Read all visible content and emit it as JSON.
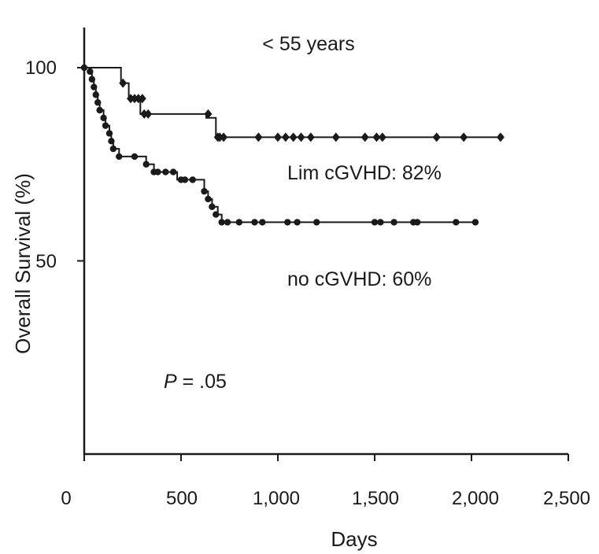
{
  "chart_data": {
    "type": "line",
    "title": "< 55 years",
    "xlabel": "Days",
    "ylabel": "Overall Survival (%)",
    "xlim": [
      0,
      2500
    ],
    "ylim": [
      0,
      105
    ],
    "x_ticks": [
      0,
      500,
      1000,
      1500,
      2000,
      2500
    ],
    "x_tick_labels": [
      "0",
      "500",
      "1,000",
      "1,500",
      "2,000",
      "2,500"
    ],
    "y_ticks": [
      50,
      100
    ],
    "y_tick_labels": [
      "50",
      "100"
    ],
    "grid": false,
    "legend": "none",
    "series": [
      {
        "name": "Lim cGVHD: 82%",
        "marker": "diamond",
        "steps": [
          [
            0,
            100
          ],
          [
            190,
            100
          ],
          [
            190,
            96
          ],
          [
            230,
            96
          ],
          [
            230,
            92
          ],
          [
            290,
            92
          ],
          [
            290,
            88
          ],
          [
            630,
            88
          ],
          [
            630,
            87
          ],
          [
            680,
            87
          ],
          [
            680,
            82
          ],
          [
            2150,
            82
          ]
        ],
        "censored_x": [
          200,
          240,
          260,
          280,
          300,
          310,
          330,
          640,
          690,
          700,
          720,
          900,
          1000,
          1040,
          1080,
          1120,
          1170,
          1300,
          1450,
          1510,
          1540,
          1820,
          1960,
          2150
        ],
        "censored_y": [
          96,
          92,
          92,
          92,
          92,
          88,
          88,
          88,
          82,
          82,
          82,
          82,
          82,
          82,
          82,
          82,
          82,
          82,
          82,
          82,
          82,
          82,
          82,
          82
        ]
      },
      {
        "name": "no cGVHD: 60%",
        "marker": "circle",
        "steps": [
          [
            0,
            100
          ],
          [
            30,
            100
          ],
          [
            30,
            99
          ],
          [
            40,
            99
          ],
          [
            40,
            97
          ],
          [
            50,
            97
          ],
          [
            50,
            95
          ],
          [
            60,
            95
          ],
          [
            60,
            93
          ],
          [
            70,
            93
          ],
          [
            70,
            91
          ],
          [
            80,
            91
          ],
          [
            80,
            89
          ],
          [
            100,
            89
          ],
          [
            100,
            87
          ],
          [
            110,
            87
          ],
          [
            110,
            85
          ],
          [
            130,
            85
          ],
          [
            130,
            83
          ],
          [
            140,
            83
          ],
          [
            140,
            81
          ],
          [
            150,
            81
          ],
          [
            150,
            79
          ],
          [
            180,
            79
          ],
          [
            180,
            77
          ],
          [
            320,
            77
          ],
          [
            320,
            75
          ],
          [
            360,
            75
          ],
          [
            360,
            73
          ],
          [
            480,
            73
          ],
          [
            480,
            71
          ],
          [
            620,
            71
          ],
          [
            620,
            68
          ],
          [
            640,
            68
          ],
          [
            640,
            66
          ],
          [
            660,
            66
          ],
          [
            660,
            64
          ],
          [
            690,
            64
          ],
          [
            690,
            62
          ],
          [
            710,
            62
          ],
          [
            710,
            60
          ],
          [
            2020,
            60
          ]
        ],
        "censored_x": [
          0,
          30,
          40,
          50,
          60,
          70,
          80,
          100,
          110,
          130,
          140,
          150,
          180,
          260,
          320,
          360,
          380,
          420,
          460,
          500,
          520,
          560,
          620,
          640,
          660,
          680,
          710,
          740,
          800,
          880,
          920,
          1050,
          1100,
          1200,
          1500,
          1530,
          1600,
          1700,
          1720,
          1920,
          2020
        ],
        "censored_y": [
          100,
          99,
          97,
          95,
          93,
          91,
          89,
          87,
          85,
          83,
          81,
          79,
          77,
          77,
          75,
          73,
          73,
          73,
          73,
          71,
          71,
          71,
          68,
          66,
          64,
          62,
          60,
          60,
          60,
          60,
          60,
          60,
          60,
          60,
          60,
          60,
          60,
          60,
          60,
          60,
          60
        ]
      }
    ],
    "annotations": {
      "lim_label": "Lim cGVHD: 82%",
      "no_label": "no cGVHD: 60%",
      "p_italic": "P",
      "p_value": " = .05"
    }
  }
}
